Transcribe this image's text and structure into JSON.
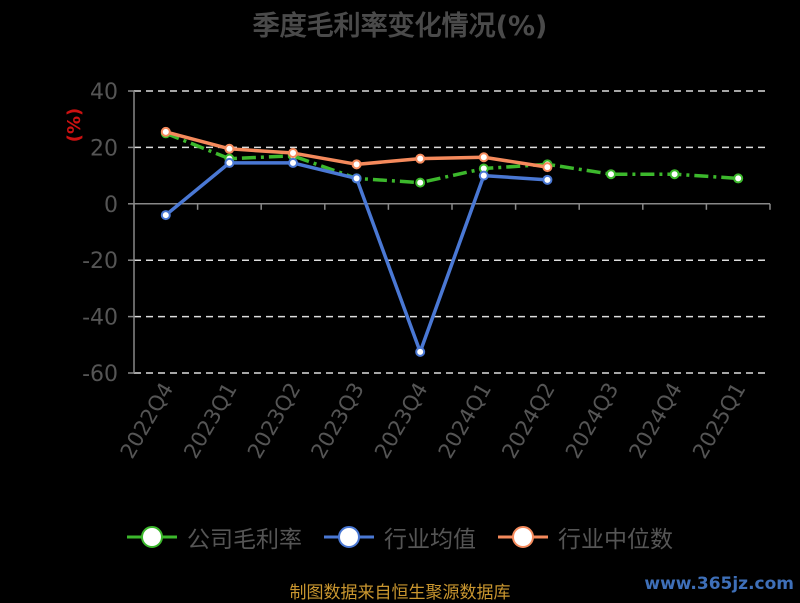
{
  "title": "季度毛利率变化情况(%)",
  "source": "制图数据来自恒生聚源数据库",
  "watermark": "www.365jz.com",
  "chart_data": {
    "type": "line",
    "title": "季度毛利率变化情况(%)",
    "ylabel": "(%)",
    "xlabel": "",
    "ylim": [
      -60,
      40
    ],
    "yticks": [
      "40",
      "20",
      "0",
      "-20",
      "-40",
      "-60"
    ],
    "ytick_values": [
      40,
      20,
      0,
      -20,
      -40,
      -60
    ],
    "grid": true,
    "legend_position": "bottom",
    "categories": [
      "2022Q4",
      "2023Q1",
      "2023Q2",
      "2023Q3",
      "2023Q4",
      "2024Q1",
      "2024Q2",
      "2024Q3",
      "2024Q4",
      "2025Q1"
    ],
    "series": [
      {
        "name": "公司毛利率",
        "color": "#3cb82c",
        "dashed": true,
        "values": [
          25,
          16,
          17,
          9,
          7.5,
          12.5,
          14,
          10.5,
          10.5,
          9
        ]
      },
      {
        "name": "行业均值",
        "color": "#4a78d4",
        "dashed": false,
        "values": [
          -4,
          14.5,
          14.5,
          9,
          -52.5,
          10,
          8.5,
          null,
          null,
          null
        ]
      },
      {
        "name": "行业中位数",
        "color": "#f58a5c",
        "dashed": false,
        "values": [
          25.5,
          19.5,
          18,
          14,
          16,
          16.5,
          13,
          null,
          null,
          null
        ]
      }
    ]
  }
}
